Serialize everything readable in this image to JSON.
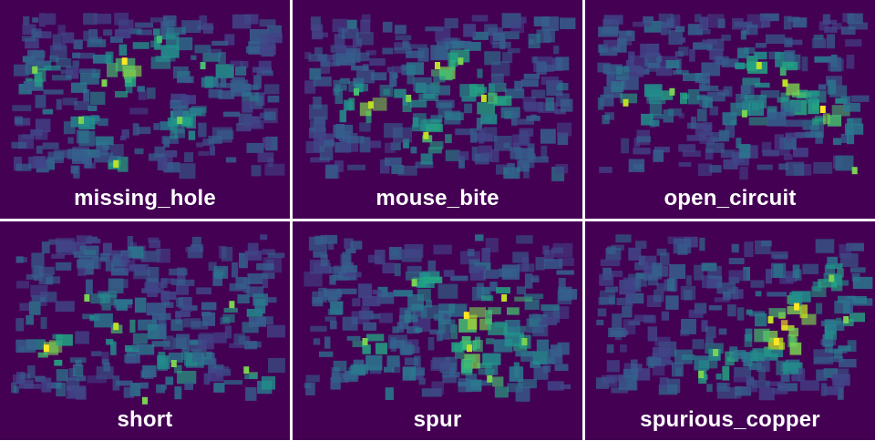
{
  "chart_data": {
    "type": "heatmap",
    "colormap": "viridis",
    "background_color": "#440154",
    "grid": "2x3",
    "panels": [
      {
        "label": "missing_hole",
        "hotspots": [
          [
            0.43,
            0.28,
            1.0
          ],
          [
            0.36,
            0.38,
            0.6
          ],
          [
            0.4,
            0.75,
            0.7
          ],
          [
            0.62,
            0.55,
            0.45
          ],
          [
            0.12,
            0.32,
            0.5
          ],
          [
            0.7,
            0.3,
            0.4
          ],
          [
            0.28,
            0.55,
            0.45
          ],
          [
            0.55,
            0.18,
            0.4
          ]
        ]
      },
      {
        "label": "mouse_bite",
        "hotspots": [
          [
            0.46,
            0.62,
            0.8
          ],
          [
            0.27,
            0.48,
            0.7
          ],
          [
            0.5,
            0.3,
            0.7
          ],
          [
            0.66,
            0.45,
            0.7
          ],
          [
            0.4,
            0.45,
            0.5
          ],
          [
            0.58,
            0.28,
            0.5
          ],
          [
            0.22,
            0.42,
            0.4
          ]
        ]
      },
      {
        "label": "open_circuit",
        "hotspots": [
          [
            0.82,
            0.5,
            0.95
          ],
          [
            0.6,
            0.3,
            0.85
          ],
          [
            0.69,
            0.38,
            0.8
          ],
          [
            0.14,
            0.47,
            0.7
          ],
          [
            0.93,
            0.78,
            0.6
          ],
          [
            0.55,
            0.52,
            0.6
          ],
          [
            0.3,
            0.42,
            0.5
          ]
        ]
      },
      {
        "label": "short",
        "hotspots": [
          [
            0.16,
            0.58,
            1.0
          ],
          [
            0.4,
            0.48,
            0.75
          ],
          [
            0.6,
            0.65,
            0.6
          ],
          [
            0.85,
            0.68,
            0.6
          ],
          [
            0.3,
            0.35,
            0.45
          ],
          [
            0.8,
            0.38,
            0.5
          ],
          [
            0.5,
            0.82,
            0.45
          ]
        ]
      },
      {
        "label": "spur",
        "hotspots": [
          [
            0.6,
            0.43,
            0.95
          ],
          [
            0.73,
            0.35,
            0.85
          ],
          [
            0.61,
            0.58,
            0.8
          ],
          [
            0.42,
            0.28,
            0.55
          ],
          [
            0.68,
            0.72,
            0.6
          ],
          [
            0.25,
            0.55,
            0.5
          ],
          [
            0.8,
            0.55,
            0.5
          ]
        ]
      },
      {
        "label": "spurious_copper",
        "hotspots": [
          [
            0.73,
            0.39,
            0.95
          ],
          [
            0.64,
            0.45,
            0.8
          ],
          [
            0.66,
            0.55,
            0.9
          ],
          [
            0.85,
            0.26,
            0.6
          ],
          [
            0.45,
            0.6,
            0.5
          ],
          [
            0.4,
            0.7,
            0.45
          ],
          [
            0.9,
            0.45,
            0.45
          ]
        ]
      }
    ]
  }
}
